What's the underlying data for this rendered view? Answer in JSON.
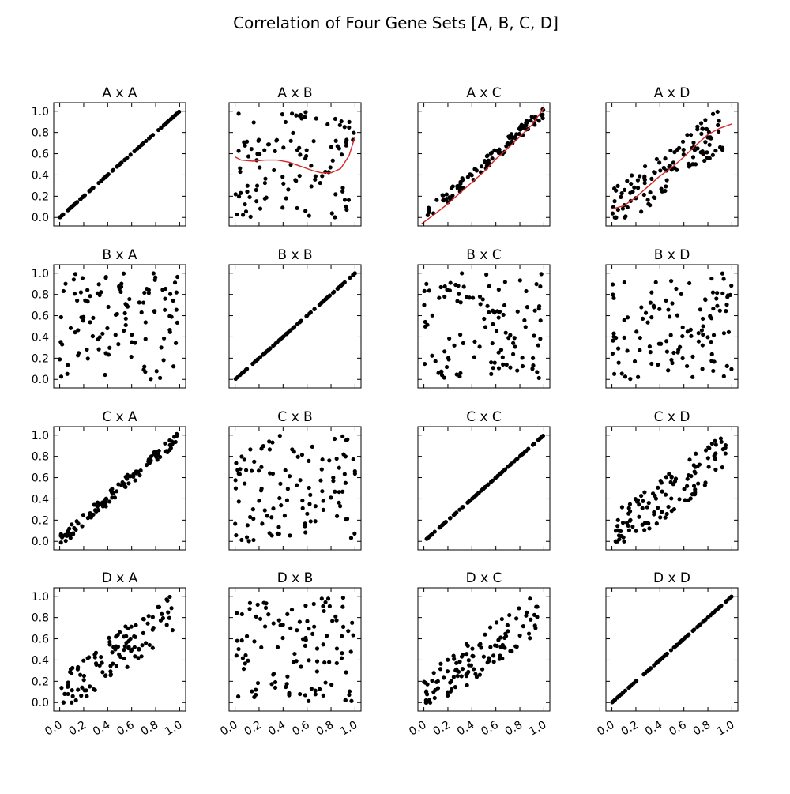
{
  "chart_data": {
    "type": "scatter",
    "title": "Correlation of Four Gene Sets [A, B, C, D]",
    "rows": [
      "A",
      "B",
      "C",
      "D"
    ],
    "cols": [
      "A",
      "B",
      "C",
      "D"
    ],
    "xlim": [
      -0.05,
      1.05
    ],
    "ylim": [
      -0.08,
      1.08
    ],
    "xticks": [
      "0.0",
      "0.2",
      "0.4",
      "0.6",
      "0.8",
      "1.0"
    ],
    "yticks": [
      "0.0",
      "0.2",
      "0.4",
      "0.6",
      "0.8",
      "1.0"
    ],
    "grid": false,
    "marker_color": "#000000",
    "fit_color": "#d62728",
    "panels": [
      {
        "title": "A x A",
        "kind": "identity",
        "fit": null
      },
      {
        "title": "A x B",
        "kind": "random",
        "fit": [
          [
            0.0,
            0.57
          ],
          [
            0.05,
            0.54
          ],
          [
            0.15,
            0.53
          ],
          [
            0.25,
            0.54
          ],
          [
            0.35,
            0.54
          ],
          [
            0.45,
            0.52
          ],
          [
            0.55,
            0.48
          ],
          [
            0.65,
            0.44
          ],
          [
            0.72,
            0.42
          ],
          [
            0.8,
            0.42
          ],
          [
            0.88,
            0.46
          ],
          [
            0.95,
            0.58
          ],
          [
            1.0,
            0.76
          ]
        ]
      },
      {
        "title": "A x C",
        "kind": "strong",
        "fit": [
          [
            -0.02,
            -0.06
          ],
          [
            0.1,
            0.04
          ],
          [
            0.2,
            0.13
          ],
          [
            0.3,
            0.23
          ],
          [
            0.4,
            0.33
          ],
          [
            0.5,
            0.43
          ],
          [
            0.6,
            0.55
          ],
          [
            0.7,
            0.65
          ],
          [
            0.8,
            0.76
          ],
          [
            0.9,
            0.87
          ],
          [
            1.0,
            1.03
          ]
        ]
      },
      {
        "title": "A x D",
        "kind": "moderate",
        "fit": [
          [
            0.0,
            0.08
          ],
          [
            0.1,
            0.11
          ],
          [
            0.2,
            0.19
          ],
          [
            0.3,
            0.29
          ],
          [
            0.4,
            0.39
          ],
          [
            0.5,
            0.47
          ],
          [
            0.6,
            0.57
          ],
          [
            0.7,
            0.68
          ],
          [
            0.8,
            0.78
          ],
          [
            0.9,
            0.84
          ],
          [
            1.0,
            0.88
          ]
        ]
      },
      {
        "title": "B x A",
        "kind": "random",
        "fit": null
      },
      {
        "title": "B x B",
        "kind": "identity",
        "fit": null
      },
      {
        "title": "B x C",
        "kind": "random",
        "fit": null
      },
      {
        "title": "B x D",
        "kind": "random",
        "fit": null
      },
      {
        "title": "C x A",
        "kind": "strong",
        "fit": null
      },
      {
        "title": "C x B",
        "kind": "random",
        "fit": null
      },
      {
        "title": "C x C",
        "kind": "identity",
        "fit": null
      },
      {
        "title": "C x D",
        "kind": "moderate",
        "fit": null
      },
      {
        "title": "D x A",
        "kind": "moderate",
        "fit": null
      },
      {
        "title": "D x B",
        "kind": "random",
        "fit": null
      },
      {
        "title": "D x C",
        "kind": "moderate",
        "fit": null
      },
      {
        "title": "D x D",
        "kind": "identity",
        "fit": null
      }
    ]
  }
}
